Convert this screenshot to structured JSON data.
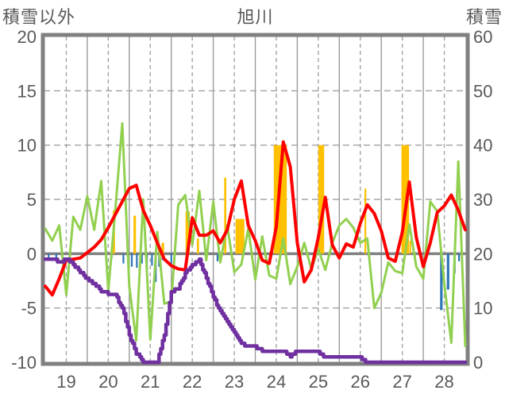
{
  "title": "旭川",
  "header": {
    "left_axis_title": "積雪以外",
    "chart_title": "旭川",
    "right_axis_title": "積雪"
  },
  "colors": {
    "red_line": "#FF0000",
    "green_line": "#92D050",
    "purple_line": "#7030A0",
    "orange_bars": "#FFC000",
    "blue_bars": "#2E75B6",
    "grid_dashed": "#A3A3A3",
    "grid_solid": "#9B9B9B",
    "zero_line": "#808080",
    "frame": "#808080",
    "text": "#595959",
    "background": "#FFFFFF"
  },
  "chart_data": {
    "type": "mixed",
    "title": "旭川",
    "x_start": 18.5,
    "x_end": 28.5,
    "x_step_days": 0.1666667,
    "x_ticks": [
      19,
      20,
      21,
      22,
      23,
      24,
      25,
      26,
      27,
      28
    ],
    "x_tick_labels": [
      "19",
      "20",
      "21",
      "22",
      "23",
      "24",
      "25",
      "26",
      "27",
      "28"
    ],
    "left_axis": {
      "title": "積雪以外",
      "min": -10,
      "max": 20,
      "ticks": [
        20,
        15,
        10,
        5,
        0,
        -5,
        -10
      ],
      "tick_labels": [
        "20",
        "15",
        "10",
        "5",
        "0",
        "-5",
        "-10"
      ]
    },
    "right_axis": {
      "title": "積雪",
      "min": 0,
      "max": 60,
      "ticks": [
        60,
        50,
        40,
        30,
        20,
        10,
        0
      ],
      "tick_labels": [
        "60",
        "50",
        "40",
        "30",
        "20",
        "10",
        "0"
      ]
    },
    "grid": {
      "vertical_dashed_at_day_labels": true,
      "vertical_solid_at_half_days": true,
      "horizontal_dashed_ticks": [
        15,
        10,
        5,
        -5
      ],
      "zero_line": true
    },
    "series": [
      {
        "name": "red_line",
        "type": "line",
        "axis": "left",
        "color_key": "red_line",
        "values": [
          -3.0,
          -3.8,
          -2.3,
          -0.6,
          -0.5,
          -0.4,
          0.1,
          0.6,
          1.3,
          2.4,
          3.6,
          4.8,
          6.0,
          6.3,
          4.0,
          2.6,
          1.0,
          -0.5,
          -1.1,
          -1.4,
          -1.5,
          3.3,
          1.7,
          1.7,
          2.1,
          1.0,
          2.2,
          5.0,
          6.7,
          2.6,
          1.2,
          -0.6,
          -0.9,
          2.5,
          10.3,
          8.0,
          1.0,
          -2.6,
          -1.5,
          1.5,
          5.2,
          0.8,
          -0.4,
          0.9,
          0.6,
          2.8,
          4.5,
          3.7,
          2.1,
          -0.4,
          -0.7,
          2.0,
          6.6,
          1.5,
          -1.2,
          1.0,
          3.8,
          4.4,
          5.4,
          4.0,
          2.2
        ]
      },
      {
        "name": "green_line",
        "type": "line",
        "axis": "left",
        "color_key": "green_line",
        "values": [
          2.3,
          1.2,
          2.6,
          -3.8,
          3.4,
          2.2,
          5.3,
          2.2,
          6.7,
          -3.4,
          4.0,
          12.0,
          -3.0,
          -8.0,
          5.0,
          -7.9,
          2.0,
          -4.6,
          -4.4,
          4.5,
          5.4,
          0.8,
          5.8,
          -0.6,
          4.8,
          -0.8,
          2.6,
          -1.7,
          -1.0,
          2.3,
          -2.4,
          1.6,
          -2.0,
          -2.3,
          1.4,
          -2.8,
          -1.2,
          1.0,
          -1.4,
          0.4,
          -1.5,
          1.0,
          2.6,
          3.2,
          2.4,
          1.0,
          1.4,
          -5.0,
          -3.6,
          -0.8,
          -1.6,
          -1.8,
          2.7,
          -1.2,
          -2.3,
          4.8,
          3.9,
          -2.8,
          -8.2,
          8.5,
          -8.5
        ]
      },
      {
        "name": "purple_line",
        "type": "step-line",
        "axis": "right",
        "color_key": "purple_line",
        "values": [
          19.2,
          19.2,
          18.4,
          19.0,
          18.0,
          16.6,
          15.4,
          14.4,
          13.2,
          12.6,
          12.4,
          10.0,
          5.0,
          1.6,
          0.2,
          0,
          0,
          5.0,
          13.0,
          13.6,
          16.4,
          18.0,
          18.8,
          15.6,
          12.0,
          9.4,
          7.4,
          5.6,
          3.6,
          2.8,
          2.8,
          2.2,
          2.2,
          2.2,
          2.2,
          1.2,
          2.0,
          2.0,
          2.0,
          1.8,
          0.8,
          0.8,
          0.8,
          0.8,
          0.8,
          0.8,
          0,
          0,
          0,
          0,
          0,
          0,
          0,
          0,
          0,
          0,
          0,
          0,
          0,
          0,
          0
        ]
      },
      {
        "name": "orange_bars",
        "type": "bar",
        "axis": "left",
        "color_key": "orange_bars",
        "bars": [
          [
            20.11,
            20.16,
            4.0
          ],
          [
            20.6,
            20.66,
            3.5
          ],
          [
            21.27,
            21.33,
            1.0
          ],
          [
            21.84,
            21.94,
            3.9
          ],
          [
            22.11,
            22.16,
            1.4
          ],
          [
            22.76,
            22.81,
            7.0
          ],
          [
            23.03,
            23.24,
            3.2
          ],
          [
            23.94,
            24.25,
            10.0
          ],
          [
            25.0,
            25.14,
            10.0
          ],
          [
            26.1,
            26.14,
            6.0
          ],
          [
            26.98,
            27.16,
            10.0
          ],
          [
            27.17,
            27.21,
            1.2
          ]
        ]
      },
      {
        "name": "blue_bars",
        "type": "bar",
        "axis": "left",
        "color_key": "blue_bars",
        "bars": [
          [
            18.56,
            18.6,
            -0.5
          ],
          [
            18.74,
            18.78,
            -0.6
          ],
          [
            20.06,
            20.1,
            -0.4
          ],
          [
            20.34,
            20.38,
            -0.9
          ],
          [
            20.54,
            20.58,
            -1.2
          ],
          [
            20.66,
            20.7,
            -1.3
          ],
          [
            20.78,
            20.82,
            -0.9
          ],
          [
            20.9,
            20.94,
            -2.0
          ],
          [
            21.02,
            21.06,
            -1.1
          ],
          [
            21.11,
            21.15,
            -2.6
          ],
          [
            21.19,
            21.23,
            -1.2
          ],
          [
            21.27,
            21.31,
            -0.6
          ],
          [
            21.48,
            21.52,
            -1.0
          ],
          [
            22.58,
            22.62,
            -0.7
          ],
          [
            27.9,
            27.96,
            -5.2
          ],
          [
            28.06,
            28.12,
            -3.3
          ],
          [
            28.22,
            28.27,
            -1.8
          ],
          [
            28.33,
            28.37,
            -0.7
          ]
        ]
      }
    ]
  }
}
